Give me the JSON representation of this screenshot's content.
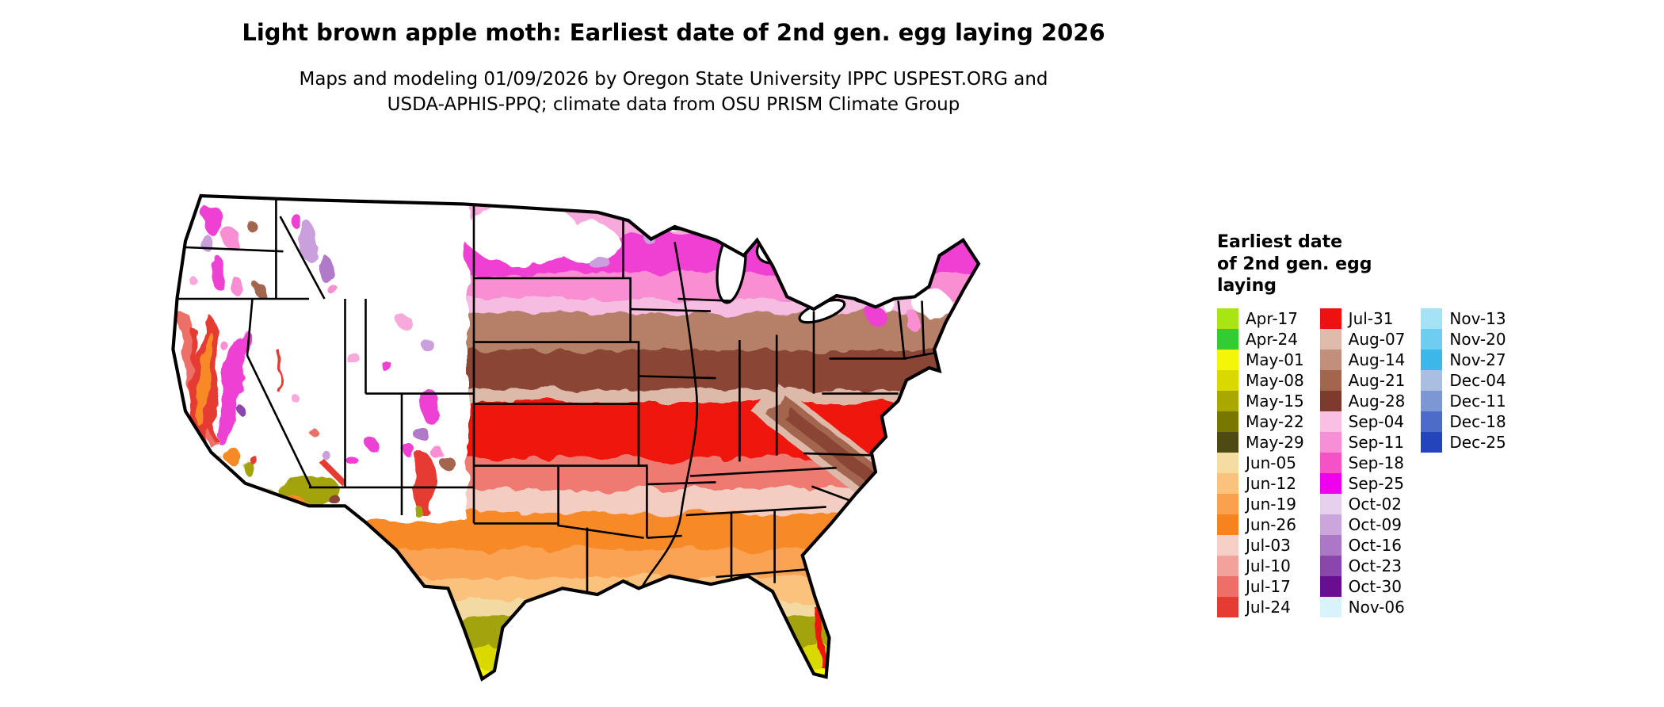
{
  "title": "Light brown apple moth: Earliest date of 2nd gen. egg laying 2026",
  "subtitle": {
    "line1": "Maps and modeling 01/09/2026 by Oregon State University IPPC USPEST.ORG and",
    "line2": "USDA-APHIS-PPQ; climate data from OSU PRISM Climate Group"
  },
  "legend": {
    "title_line1": "Earliest date",
    "title_line2": "of 2nd gen. egg",
    "title_line3": "laying",
    "columns": [
      {
        "entries": [
          {
            "label": "Apr-17",
            "color": "#A8E613"
          },
          {
            "label": "Apr-24",
            "color": "#33CC33"
          },
          {
            "label": "May-01",
            "color": "#F5F50A"
          },
          {
            "label": "May-08",
            "color": "#D9D900"
          },
          {
            "label": "May-15",
            "color": "#A8A800"
          },
          {
            "label": "May-22",
            "color": "#787800"
          },
          {
            "label": "May-29",
            "color": "#4F4A14"
          },
          {
            "label": "Jun-05",
            "color": "#F5DCA0"
          },
          {
            "label": "Jun-12",
            "color": "#FBC27D"
          },
          {
            "label": "Jun-19",
            "color": "#FAA14F"
          },
          {
            "label": "Jun-26",
            "color": "#F7831E"
          },
          {
            "label": "Jul-03",
            "color": "#F6CFC6"
          },
          {
            "label": "Jul-10",
            "color": "#F2A19B"
          },
          {
            "label": "Jul-17",
            "color": "#ED6F68"
          },
          {
            "label": "Jul-24",
            "color": "#E63B33"
          }
        ]
      },
      {
        "entries": [
          {
            "label": "Jul-31",
            "color": "#EE1111"
          },
          {
            "label": "Aug-07",
            "color": "#E0BBAC"
          },
          {
            "label": "Aug-14",
            "color": "#C28F7B"
          },
          {
            "label": "Aug-21",
            "color": "#A4654F"
          },
          {
            "label": "Aug-28",
            "color": "#7E3A2D"
          },
          {
            "label": "Sep-04",
            "color": "#FAC0E4"
          },
          {
            "label": "Sep-11",
            "color": "#F78FD6"
          },
          {
            "label": "Sep-18",
            "color": "#F353C6"
          },
          {
            "label": "Sep-25",
            "color": "#EE00EE"
          },
          {
            "label": "Oct-02",
            "color": "#E5D0ED"
          },
          {
            "label": "Oct-09",
            "color": "#CBA6DC"
          },
          {
            "label": "Oct-16",
            "color": "#AB77C6"
          },
          {
            "label": "Oct-23",
            "color": "#8A46AC"
          },
          {
            "label": "Oct-30",
            "color": "#690E90"
          },
          {
            "label": "Nov-06",
            "color": "#D8F3FC"
          }
        ]
      },
      {
        "entries": [
          {
            "label": "Nov-13",
            "color": "#A5E2F6"
          },
          {
            "label": "Nov-20",
            "color": "#6FCDEF"
          },
          {
            "label": "Nov-27",
            "color": "#3DB6E8"
          },
          {
            "label": "Dec-04",
            "color": "#AABEE2"
          },
          {
            "label": "Dec-11",
            "color": "#7D97D5"
          },
          {
            "label": "Dec-18",
            "color": "#4D6BC8"
          },
          {
            "label": "Dec-25",
            "color": "#2344BB"
          }
        ]
      }
    ]
  }
}
